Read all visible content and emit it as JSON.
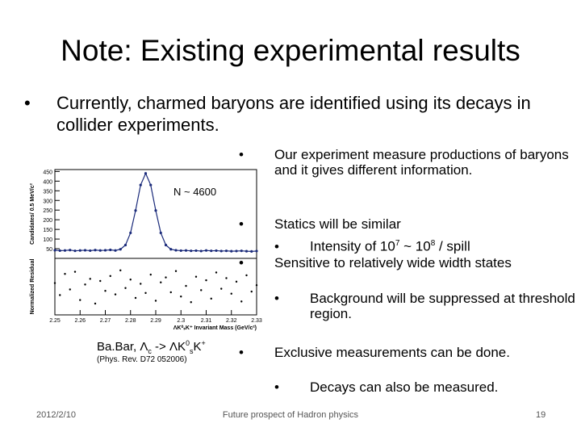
{
  "title": "Note: Existing experimental results",
  "intro": "Currently,  charmed baryons are identified using its decays in collider experiments.",
  "right": {
    "b1": "Our experiment measure productions of baryons  and it gives different information.",
    "b2": "Statics will be similar",
    "b2a": [
      "Intensity of 10",
      "7",
      " ~ 10",
      "8",
      "  / spill"
    ],
    "b3": "Sensitive to relatively wide width states",
    "b3a": "Background will be suppressed at threshold region.",
    "b4": "Exclusive measurements can be done.",
    "b4a": "Decays can also be measured."
  },
  "caption": [
    "Ba.Bar, Λ",
    "c",
    " -> ΛK",
    "0",
    "s",
    "K",
    "+"
  ],
  "reference": "(Phys. Rev. D72 052006)",
  "footer": {
    "date": "2012/2/10",
    "center": "Future prospect of Hadron physics",
    "page": "19"
  },
  "plot": {
    "annotation": "N ~ 4600",
    "ylabel": "Candidates/ 0.5 MeV/c²",
    "residual_label": "Normalized Residual",
    "xlabel": "ΛK⁰ₛK⁺ Invariant Mass (GeV/c²)",
    "xlim": [
      2.25,
      2.33
    ],
    "xticks": [
      2.25,
      2.26,
      2.27,
      2.28,
      2.29,
      2.3,
      2.31,
      2.32,
      2.33
    ],
    "ylim": [
      0,
      460
    ],
    "yticks": [
      50,
      100,
      150,
      200,
      250,
      300,
      350,
      400,
      450
    ],
    "residual_ylim": [
      -4,
      4
    ],
    "color": "#1a2a7a",
    "x": [
      2.25,
      2.252,
      2.254,
      2.256,
      2.258,
      2.26,
      2.262,
      2.264,
      2.266,
      2.268,
      2.27,
      2.272,
      2.274,
      2.276,
      2.278,
      2.28,
      2.282,
      2.284,
      2.286,
      2.288,
      2.29,
      2.292,
      2.294,
      2.296,
      2.298,
      2.3,
      2.302,
      2.304,
      2.306,
      2.308,
      2.31,
      2.312,
      2.314,
      2.316,
      2.318,
      2.32,
      2.322,
      2.324,
      2.326,
      2.328,
      2.33
    ],
    "values": [
      42,
      40,
      41,
      43,
      39,
      41,
      42,
      40,
      43,
      41,
      42,
      44,
      41,
      47,
      69,
      132,
      248,
      380,
      440,
      380,
      248,
      132,
      69,
      47,
      42,
      40,
      41,
      39,
      40,
      38,
      41,
      39,
      40,
      38,
      39,
      37,
      38,
      39,
      37,
      36,
      38
    ],
    "residuals": [
      0.5,
      -1.2,
      1.8,
      -0.4,
      2.1,
      -1.9,
      0.3,
      1.1,
      -2.4,
      0.8,
      -0.6,
      1.5,
      -1.1,
      2.3,
      -0.2,
      1.0,
      -1.6,
      0.4,
      -0.9,
      1.7,
      -2.0,
      0.6,
      1.3,
      -0.8,
      2.2,
      -1.4,
      0.1,
      -2.2,
      1.4,
      -0.5,
      0.9,
      -1.7,
      2.0,
      -0.3,
      1.2,
      -1.0,
      0.7,
      -2.1,
      1.6,
      -0.7,
      0.2
    ]
  }
}
